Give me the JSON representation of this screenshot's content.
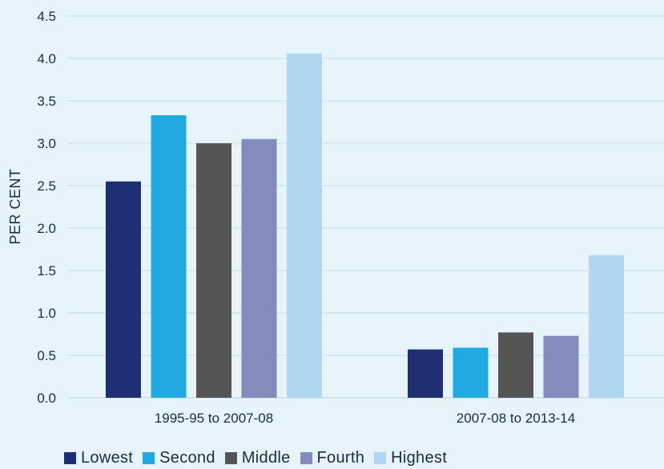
{
  "chart_data": {
    "type": "bar",
    "title": "",
    "xlabel": "",
    "ylabel": "PER CENT",
    "ylim": [
      0,
      4.5
    ],
    "yticks": [
      "0.0",
      "0.5",
      "1.0",
      "1.5",
      "2.0",
      "2.5",
      "3.0",
      "3.5",
      "4.0",
      "4.5"
    ],
    "grid": true,
    "legend_position": "bottom",
    "categories": [
      "1995-95 to 2007-08",
      "2007-08 to 2013-14"
    ],
    "series": [
      {
        "name": "Lowest",
        "color": "#1e2f73",
        "values": [
          2.55,
          0.57
        ]
      },
      {
        "name": "Second",
        "color": "#21a9e1",
        "values": [
          3.33,
          0.59
        ]
      },
      {
        "name": "Middle",
        "color": "#555555",
        "values": [
          3.0,
          0.77
        ]
      },
      {
        "name": "Fourth",
        "color": "#848bbd",
        "values": [
          3.05,
          0.73
        ]
      },
      {
        "name": "Highest",
        "color": "#b0d7f2",
        "values": [
          4.06,
          1.68
        ]
      }
    ]
  },
  "colors": {
    "background": "#e8f4fb",
    "grid": "#c9dbe6",
    "text": "#1a2b45"
  }
}
